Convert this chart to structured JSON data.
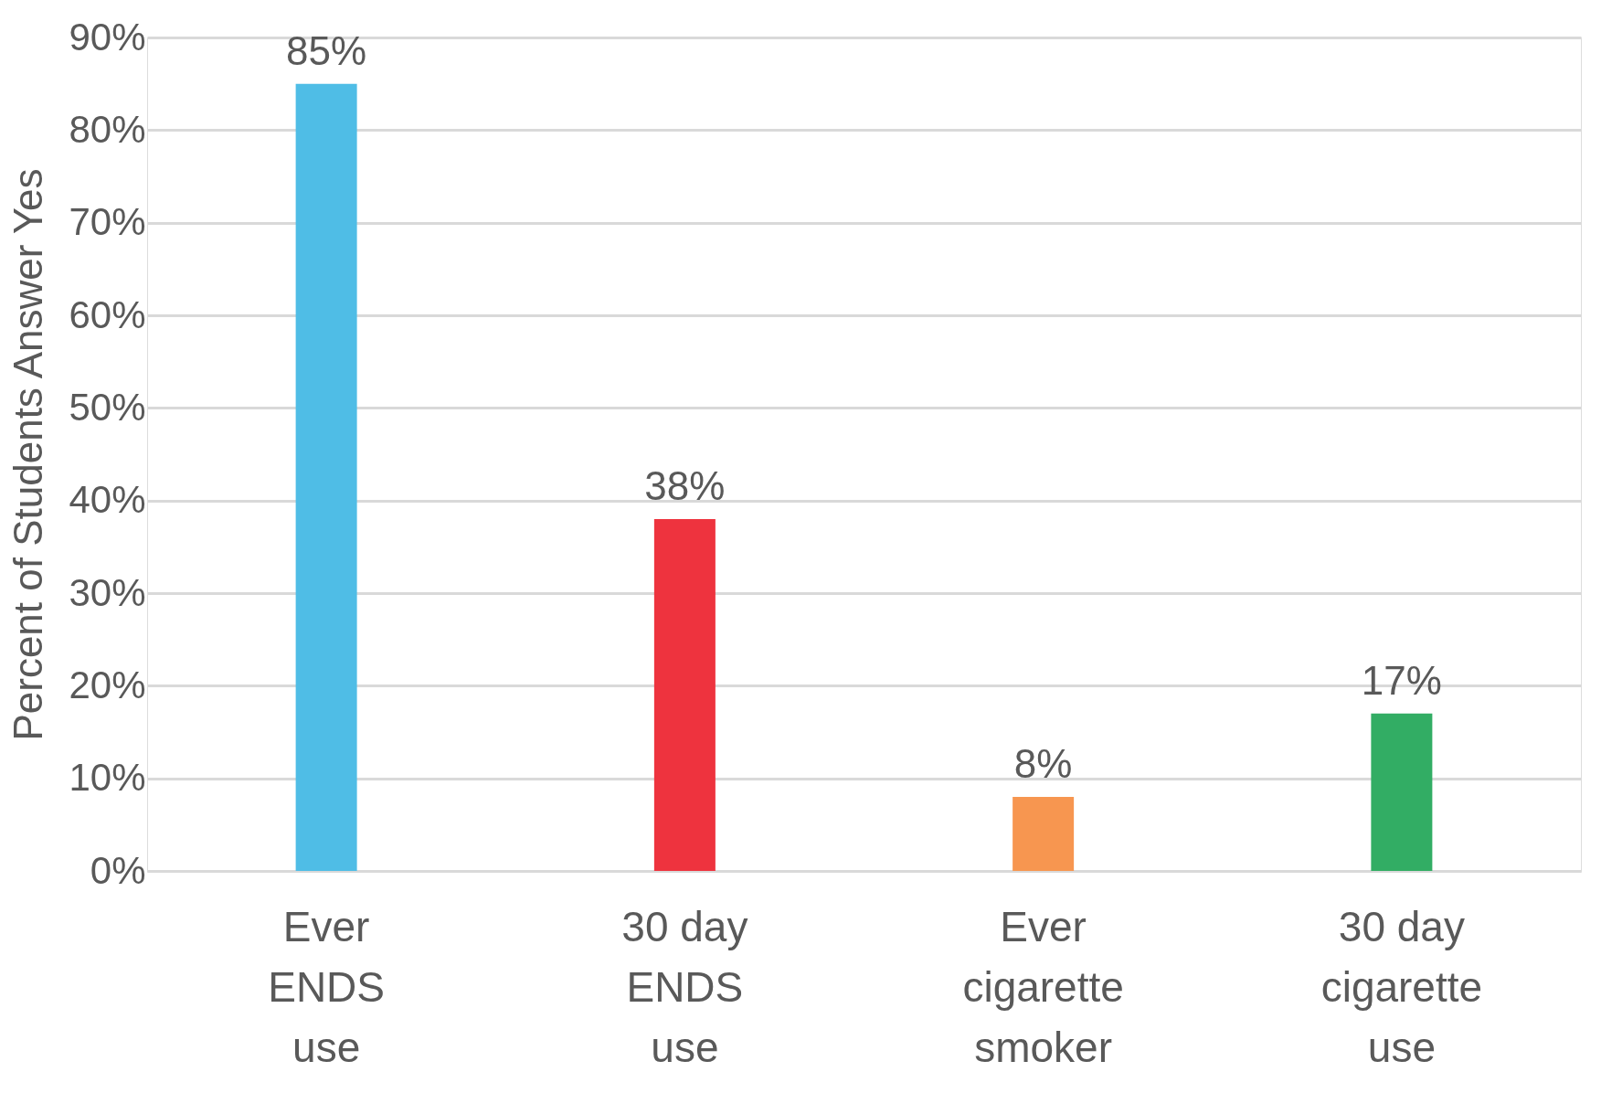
{
  "chart_data": {
    "type": "bar",
    "ylabel": "Percent of Students Answer Yes",
    "categories": [
      "Ever\nENDS\nuse",
      "30 day\nENDS\nuse",
      "Ever\ncigarette\nsmoker",
      "30 day\ncigarette\nuse"
    ],
    "values": [
      85,
      38,
      8,
      17
    ],
    "colors": [
      "#4fbde6",
      "#ee333e",
      "#f79650",
      "#32ad64"
    ],
    "value_labels": [
      "85%",
      "38%",
      "8%",
      "17%"
    ],
    "ylim": [
      0,
      90
    ],
    "yticks": [
      {
        "value": 0,
        "label": "0%"
      },
      {
        "value": 10,
        "label": "10%"
      },
      {
        "value": 20,
        "label": "20%"
      },
      {
        "value": 30,
        "label": "30%"
      },
      {
        "value": 40,
        "label": "40%"
      },
      {
        "value": 50,
        "label": "50%"
      },
      {
        "value": 60,
        "label": "60%"
      },
      {
        "value": 70,
        "label": "70%"
      },
      {
        "value": 80,
        "label": "80%"
      },
      {
        "value": 90,
        "label": "90%"
      }
    ],
    "grid": "y",
    "legend": false
  }
}
